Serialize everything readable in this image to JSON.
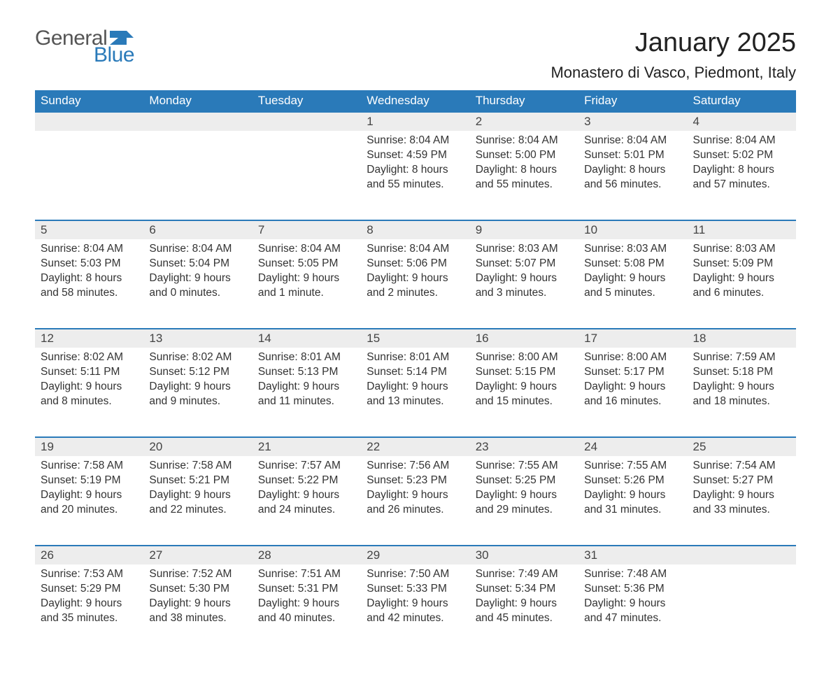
{
  "logo": {
    "text_general": "General",
    "text_blue": "Blue",
    "gray": "#666666",
    "blue": "#2a7ab9"
  },
  "title": "January 2025",
  "location": "Monastero di Vasco, Piedmont, Italy",
  "colors": {
    "header_bg": "#2a7ab9",
    "header_text": "#ffffff",
    "daynum_bg": "#ededed",
    "daynum_border": "#2a7ab9",
    "body_text": "#333333",
    "page_bg": "#ffffff"
  },
  "weekdays": [
    "Sunday",
    "Monday",
    "Tuesday",
    "Wednesday",
    "Thursday",
    "Friday",
    "Saturday"
  ],
  "weeks": [
    [
      null,
      null,
      null,
      {
        "n": "1",
        "sunrise": "8:04 AM",
        "sunset": "4:59 PM",
        "daylight": "8 hours and 55 minutes."
      },
      {
        "n": "2",
        "sunrise": "8:04 AM",
        "sunset": "5:00 PM",
        "daylight": "8 hours and 55 minutes."
      },
      {
        "n": "3",
        "sunrise": "8:04 AM",
        "sunset": "5:01 PM",
        "daylight": "8 hours and 56 minutes."
      },
      {
        "n": "4",
        "sunrise": "8:04 AM",
        "sunset": "5:02 PM",
        "daylight": "8 hours and 57 minutes."
      }
    ],
    [
      {
        "n": "5",
        "sunrise": "8:04 AM",
        "sunset": "5:03 PM",
        "daylight": "8 hours and 58 minutes."
      },
      {
        "n": "6",
        "sunrise": "8:04 AM",
        "sunset": "5:04 PM",
        "daylight": "9 hours and 0 minutes."
      },
      {
        "n": "7",
        "sunrise": "8:04 AM",
        "sunset": "5:05 PM",
        "daylight": "9 hours and 1 minute."
      },
      {
        "n": "8",
        "sunrise": "8:04 AM",
        "sunset": "5:06 PM",
        "daylight": "9 hours and 2 minutes."
      },
      {
        "n": "9",
        "sunrise": "8:03 AM",
        "sunset": "5:07 PM",
        "daylight": "9 hours and 3 minutes."
      },
      {
        "n": "10",
        "sunrise": "8:03 AM",
        "sunset": "5:08 PM",
        "daylight": "9 hours and 5 minutes."
      },
      {
        "n": "11",
        "sunrise": "8:03 AM",
        "sunset": "5:09 PM",
        "daylight": "9 hours and 6 minutes."
      }
    ],
    [
      {
        "n": "12",
        "sunrise": "8:02 AM",
        "sunset": "5:11 PM",
        "daylight": "9 hours and 8 minutes."
      },
      {
        "n": "13",
        "sunrise": "8:02 AM",
        "sunset": "5:12 PM",
        "daylight": "9 hours and 9 minutes."
      },
      {
        "n": "14",
        "sunrise": "8:01 AM",
        "sunset": "5:13 PM",
        "daylight": "9 hours and 11 minutes."
      },
      {
        "n": "15",
        "sunrise": "8:01 AM",
        "sunset": "5:14 PM",
        "daylight": "9 hours and 13 minutes."
      },
      {
        "n": "16",
        "sunrise": "8:00 AM",
        "sunset": "5:15 PM",
        "daylight": "9 hours and 15 minutes."
      },
      {
        "n": "17",
        "sunrise": "8:00 AM",
        "sunset": "5:17 PM",
        "daylight": "9 hours and 16 minutes."
      },
      {
        "n": "18",
        "sunrise": "7:59 AM",
        "sunset": "5:18 PM",
        "daylight": "9 hours and 18 minutes."
      }
    ],
    [
      {
        "n": "19",
        "sunrise": "7:58 AM",
        "sunset": "5:19 PM",
        "daylight": "9 hours and 20 minutes."
      },
      {
        "n": "20",
        "sunrise": "7:58 AM",
        "sunset": "5:21 PM",
        "daylight": "9 hours and 22 minutes."
      },
      {
        "n": "21",
        "sunrise": "7:57 AM",
        "sunset": "5:22 PM",
        "daylight": "9 hours and 24 minutes."
      },
      {
        "n": "22",
        "sunrise": "7:56 AM",
        "sunset": "5:23 PM",
        "daylight": "9 hours and 26 minutes."
      },
      {
        "n": "23",
        "sunrise": "7:55 AM",
        "sunset": "5:25 PM",
        "daylight": "9 hours and 29 minutes."
      },
      {
        "n": "24",
        "sunrise": "7:55 AM",
        "sunset": "5:26 PM",
        "daylight": "9 hours and 31 minutes."
      },
      {
        "n": "25",
        "sunrise": "7:54 AM",
        "sunset": "5:27 PM",
        "daylight": "9 hours and 33 minutes."
      }
    ],
    [
      {
        "n": "26",
        "sunrise": "7:53 AM",
        "sunset": "5:29 PM",
        "daylight": "9 hours and 35 minutes."
      },
      {
        "n": "27",
        "sunrise": "7:52 AM",
        "sunset": "5:30 PM",
        "daylight": "9 hours and 38 minutes."
      },
      {
        "n": "28",
        "sunrise": "7:51 AM",
        "sunset": "5:31 PM",
        "daylight": "9 hours and 40 minutes."
      },
      {
        "n": "29",
        "sunrise": "7:50 AM",
        "sunset": "5:33 PM",
        "daylight": "9 hours and 42 minutes."
      },
      {
        "n": "30",
        "sunrise": "7:49 AM",
        "sunset": "5:34 PM",
        "daylight": "9 hours and 45 minutes."
      },
      {
        "n": "31",
        "sunrise": "7:48 AM",
        "sunset": "5:36 PM",
        "daylight": "9 hours and 47 minutes."
      },
      null
    ]
  ],
  "labels": {
    "sunrise": "Sunrise: ",
    "sunset": "Sunset: ",
    "daylight": "Daylight: "
  }
}
